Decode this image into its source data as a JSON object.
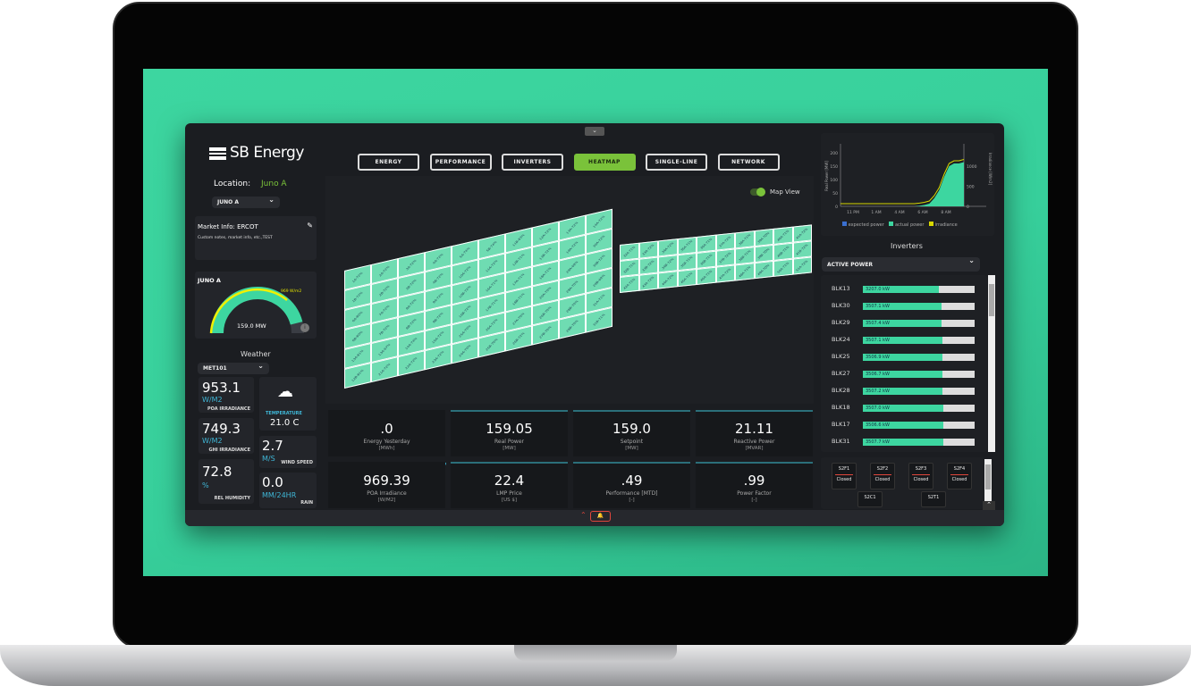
{
  "brand": "SB Energy",
  "location": {
    "label": "Location:",
    "value": "Juno A",
    "select": "JUNO A"
  },
  "market": {
    "title": "Market Info: ERCOT",
    "notes": "Custom notes, market info, etc.,TEST"
  },
  "gauge": {
    "site": "JUNO A",
    "irradiance": "969 W/m2",
    "power": "159.0 MW",
    "fraction": 0.92
  },
  "weather": {
    "title": "Weather",
    "station": "MET101",
    "poa": {
      "value": "953.1",
      "unit": "W/M2",
      "label": "POA IRRADIANCE"
    },
    "ghi": {
      "value": "749.3",
      "unit": "W/M2",
      "label": "GHI IRRADIANCE"
    },
    "hum": {
      "value": "72.8",
      "unit": "%",
      "label": "REL HUMIDITY"
    },
    "temp": {
      "label": "TEMPERATURE",
      "value": "21.0 C"
    },
    "wind": {
      "value": "2.7",
      "unit": "M/S",
      "label": "WIND SPEED"
    },
    "rain": {
      "value": "0.0",
      "unit": "MM/24HR",
      "label": "RAIN"
    }
  },
  "tabs": [
    "ENERGY",
    "PERFORMANCE",
    "INVERTERS",
    "HEATMAP",
    "SINGLE-LINE",
    "NETWORK"
  ],
  "active_tab": "HEATMAP",
  "map_view_label": "Map View",
  "heatmap": {
    "left": [
      "1A-72%",
      "2A-72%",
      "3A-72%",
      "4A-72%",
      "5A-74%",
      "5B-74%",
      "11B-83%",
      "12A-72%",
      "13A-72%",
      "14A-72%",
      "1B-72%",
      "2B-72%",
      "3B-72%",
      "4B-72%",
      "10A-72%",
      "11A-72%",
      "12B-71%",
      "13B-72%",
      "19A-72%",
      "30A-72%",
      "6A-80%",
      "7A-72%",
      "8A-72%",
      "9A-72%",
      "10B-72%",
      "16A-71%",
      "17A-71%",
      "18A-71%",
      "29A-69%",
      "30B-72%",
      "6B-80%",
      "7B-72%",
      "8B-72%",
      "9B-72%",
      "16B-72%",
      "17B-71%",
      "18B-71%",
      "20A-70%",
      "28A-70%",
      "29B-69%",
      "13A-81%",
      "13A-67%",
      "14A-74%",
      "15A-72%",
      "25A-70%",
      "26A-72%",
      "27A-70%",
      "26B-70%",
      "28B-70%",
      "31A-71%",
      "12B-81%",
      "21A-72%",
      "22A-72%",
      "23A-72%",
      "24A-70%",
      "25B-70%",
      "26B-72%",
      "27B-70%",
      "28B-70%",
      "31B-71%"
    ],
    "right": [
      "32A-71%",
      "33A-72%",
      "34A-72%",
      "35A-71%",
      "36A-71%",
      "37A-72%",
      "38A-71%",
      "39A-70%",
      "40A-71%",
      "41A-72%",
      "32B-71%",
      "33B-72%",
      "34B-72%",
      "35B-71%",
      "36B-71%",
      "37B-72%",
      "38B-71%",
      "39B-70%",
      "40B-71%",
      "41B-72%",
      "42A-71%",
      "43A-72%",
      "44A-72%",
      "45A-71%",
      "46A-71%",
      "47A-72%",
      "48A-71%",
      "49A-70%",
      "50A-71%",
      "51A-72%"
    ]
  },
  "kpis": [
    {
      "value": ".0",
      "label": "Energy Yesterday",
      "unit": "[MWh]"
    },
    {
      "value": "159.05",
      "label": "Real Power",
      "unit": "[MW]"
    },
    {
      "value": "159.0",
      "label": "Setpoint",
      "unit": "[MW]"
    },
    {
      "value": "21.11",
      "label": "Reactive Power",
      "unit": "[MVAR]"
    },
    {
      "value": "969.39",
      "label": "POA Irradiance",
      "unit": "[W/M2]"
    },
    {
      "value": "22.4",
      "label": "LMP Price",
      "unit": "[US $]"
    },
    {
      "value": ".49",
      "label": "Performance [MTD]",
      "unit": "[-]"
    },
    {
      "value": ".99",
      "label": "Power Factor",
      "unit": "[-]"
    }
  ],
  "chart_data": {
    "type": "area",
    "ylabel": "Real Power [MW]",
    "y2label": "Irradiance [W/m2]",
    "x_ticks": [
      "11 PM",
      "1 AM",
      "4 AM",
      "6 AM",
      "8 AM"
    ],
    "y_ticks": [
      0,
      50,
      100,
      150,
      200
    ],
    "y2_ticks": [
      0,
      500,
      1000
    ],
    "legend": [
      "expected power",
      "actual power",
      "irradiance"
    ],
    "colors": {
      "expected": "#3a6fd0",
      "actual": "#3dd6a0",
      "irradiance": "#d8d800"
    },
    "actual": [
      0,
      0,
      0,
      0,
      0,
      0,
      0,
      0,
      0,
      0,
      0,
      0,
      0,
      0,
      0,
      0,
      2,
      5,
      10,
      30,
      60,
      110,
      150,
      160,
      160,
      165
    ]
  },
  "inverters": {
    "title": "Inverters",
    "metric": "ACTIVE POWER",
    "items": [
      {
        "name": "BLK13",
        "value": "3207.0 kW",
        "pct": 0.68
      },
      {
        "name": "BLK30",
        "value": "3507.1 kW",
        "pct": 0.7
      },
      {
        "name": "BLK29",
        "value": "3507.4 kW",
        "pct": 0.7
      },
      {
        "name": "BLK24",
        "value": "3507.1 kW",
        "pct": 0.71
      },
      {
        "name": "BLK25",
        "value": "3506.9 kW",
        "pct": 0.71
      },
      {
        "name": "BLK27",
        "value": "3506.7 kW",
        "pct": 0.71
      },
      {
        "name": "BLK28",
        "value": "3507.2 kW",
        "pct": 0.71
      },
      {
        "name": "BLK18",
        "value": "3507.0 kW",
        "pct": 0.72
      },
      {
        "name": "BLK17",
        "value": "3506.6 kW",
        "pct": 0.72
      },
      {
        "name": "BLK31",
        "value": "3507.7 kW",
        "pct": 0.72
      }
    ]
  },
  "breakers": [
    {
      "name": "S2F1",
      "state": "Closed"
    },
    {
      "name": "S2F2",
      "state": "Closed"
    },
    {
      "name": "S2F3",
      "state": "Closed"
    },
    {
      "name": "S2F4",
      "state": "Closed"
    },
    {
      "name": "S2C1",
      "state": ""
    },
    {
      "name": "S2T1",
      "state": ""
    }
  ]
}
